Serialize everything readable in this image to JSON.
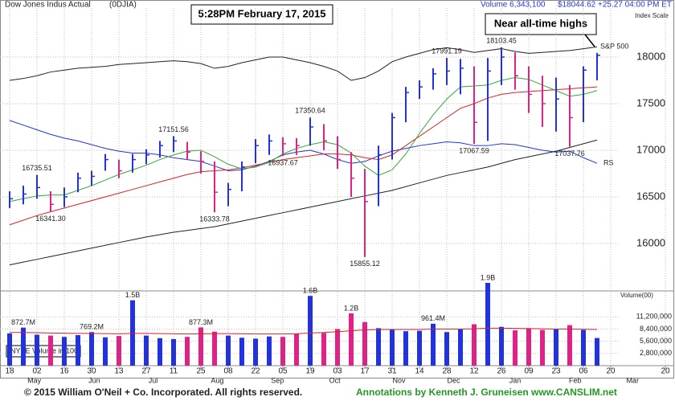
{
  "chart_data": {
    "type": "ohlc",
    "title": "Dow Jones Indus Actual",
    "symbol": "(0DJIA)",
    "volume_text": "Volume 6,343,100",
    "quote_text": "$18044.62 +25.27  04:00 PM ET",
    "scale_label": "Index Scale",
    "timestamp": "5:28PM February 17, 2015",
    "callout": "Near all-time highs",
    "x": [
      0,
      1,
      2,
      3,
      4,
      5,
      6,
      7,
      8,
      9,
      10,
      11,
      12,
      13,
      14,
      15,
      16,
      17,
      18,
      19,
      20,
      21,
      22,
      23,
      24,
      25,
      26,
      27,
      28,
      29,
      30,
      31,
      32,
      33,
      34,
      35,
      36,
      37,
      38,
      39,
      40,
      41,
      42,
      43
    ],
    "high": [
      16560,
      16620,
      16735.51,
      16560,
      16600,
      16760,
      16780,
      16960,
      16900,
      16960,
      17010,
      17100,
      17151.56,
      17090,
      16990,
      16880,
      16650,
      16880,
      17120,
      17170,
      17140,
      17130,
      17350.64,
      17280,
      17150,
      16980,
      16800,
      17050,
      17400,
      17680,
      17750,
      17880,
      17991.19,
      17980,
      17900,
      17990,
      18103.45,
      18050,
      17900,
      17800,
      17780,
      17700,
      17900,
      18044.62
    ],
    "low": [
      16380,
      16420,
      16480,
      16341.3,
      16390,
      16550,
      16620,
      16780,
      16700,
      16760,
      16850,
      16920,
      16980,
      16900,
      16750,
      16333.78,
      16400,
      16560,
      16860,
      16950,
      16937.67,
      16950,
      17050,
      17000,
      16800,
      16500,
      15855.12,
      16400,
      16900,
      17300,
      17550,
      17650,
      17700,
      17600,
      17067.59,
      17100,
      17700,
      17650,
      17400,
      17250,
      17200,
      17037.76,
      17300,
      17750
    ],
    "close": [
      16480,
      16530,
      16600,
      16420,
      16500,
      16700,
      16720,
      16900,
      16780,
      16900,
      16950,
      17050,
      17100,
      16980,
      16880,
      16550,
      16580,
      16820,
      17050,
      17100,
      17070,
      17050,
      17250,
      17100,
      16900,
      16700,
      16450,
      16950,
      17350,
      17620,
      17680,
      17820,
      17850,
      17880,
      17300,
      17850,
      18000,
      17800,
      17600,
      17500,
      17550,
      17350,
      17860,
      18019
    ],
    "up_color": "#2233dd",
    "down_color": "#dd2288",
    "xlim": [
      -0.6,
      48.6
    ],
    "xticks": [
      {
        "value": 0,
        "label": "18"
      },
      {
        "value": 2,
        "label": "02"
      },
      {
        "value": 4,
        "label": "16"
      },
      {
        "value": 6,
        "label": "30"
      },
      {
        "value": 8,
        "label": "13"
      },
      {
        "value": 10,
        "label": "27"
      },
      {
        "value": 12,
        "label": "11"
      },
      {
        "value": 14,
        "label": "25"
      },
      {
        "value": 16,
        "label": "08"
      },
      {
        "value": 18,
        "label": "22"
      },
      {
        "value": 20,
        "label": "05"
      },
      {
        "value": 22,
        "label": "19"
      },
      {
        "value": 24,
        "label": "03"
      },
      {
        "value": 26,
        "label": "17"
      },
      {
        "value": 28,
        "label": "31"
      },
      {
        "value": 30,
        "label": "14"
      },
      {
        "value": 32,
        "label": "28"
      },
      {
        "value": 34,
        "label": "12"
      },
      {
        "value": 36,
        "label": "26"
      },
      {
        "value": 38,
        "label": "09"
      },
      {
        "value": 40,
        "label": "23"
      },
      {
        "value": 42,
        "label": "06"
      },
      {
        "value": 44,
        "label": "20"
      },
      {
        "value": 48,
        "label": "20"
      }
    ],
    "months": [
      {
        "value": 1.8,
        "label": "May"
      },
      {
        "value": 6.2,
        "label": "Jun"
      },
      {
        "value": 10.5,
        "label": "Jul"
      },
      {
        "value": 15.2,
        "label": "Aug"
      },
      {
        "value": 19.6,
        "label": "Sep"
      },
      {
        "value": 23.8,
        "label": "Oct"
      },
      {
        "value": 28.5,
        "label": "Nov"
      },
      {
        "value": 32.5,
        "label": "Dec"
      },
      {
        "value": 37,
        "label": "Jan"
      },
      {
        "value": 41.4,
        "label": "Feb"
      },
      {
        "value": 45.6,
        "label": "Mar"
      }
    ],
    "ylim": [
      15491,
      18526
    ],
    "yticks": [
      16000,
      16500,
      17000,
      17500,
      18000
    ],
    "grid": true,
    "annotations": [
      {
        "label": "16735.51",
        "x": 2,
        "value": 16735.51,
        "position": "above"
      },
      {
        "label": "16341.30",
        "x": 3,
        "value": 16341.3,
        "position": "below"
      },
      {
        "label": "17151.56",
        "x": 12,
        "value": 17151.56,
        "position": "above"
      },
      {
        "label": "16333.78",
        "x": 15,
        "value": 16333.78,
        "position": "below"
      },
      {
        "label": "16937.67",
        "x": 20,
        "value": 16937.67,
        "position": "below"
      },
      {
        "label": "17350.64",
        "x": 22,
        "value": 17350.64,
        "position": "above"
      },
      {
        "label": "15855.12",
        "x": 26,
        "value": 15855.12,
        "position": "below"
      },
      {
        "label": "17991.19",
        "x": 32,
        "value": 17991.19,
        "position": "above"
      },
      {
        "label": "17067.59",
        "x": 34,
        "value": 17067.59,
        "position": "below"
      },
      {
        "label": "18103.45",
        "x": 36,
        "value": 18103.45,
        "position": "above"
      },
      {
        "label": "17037.76",
        "x": 41,
        "value": 17037.76,
        "position": "below"
      }
    ],
    "moving_averages": [
      {
        "color": "#222222",
        "values": [
          15770,
          15800,
          15830,
          15860,
          15890,
          15920,
          15950,
          15980,
          16010,
          16040,
          16070,
          16095,
          16120,
          16140,
          16160,
          16180,
          16210,
          16240,
          16270,
          16300,
          16330,
          16360,
          16390,
          16420,
          16450,
          16480,
          16510,
          16540,
          16570,
          16610,
          16650,
          16690,
          16730,
          16760,
          16790,
          16820,
          16860,
          16900,
          16930,
          16960,
          16990,
          17030,
          17070,
          17110
        ]
      },
      {
        "color": "#dd2222",
        "values": [
          16200,
          16250,
          16300,
          16340,
          16380,
          16420,
          16460,
          16500,
          16540,
          16580,
          16620,
          16660,
          16700,
          16740,
          16770,
          16780,
          16790,
          16810,
          16840,
          16870,
          16900,
          16920,
          16940,
          16960,
          16960,
          16950,
          16920,
          16900,
          16950,
          17050,
          17150,
          17250,
          17350,
          17450,
          17500,
          17560,
          17600,
          17620,
          17630,
          17640,
          17650,
          17660,
          17670,
          17680
        ]
      },
      {
        "color": "#33aa33",
        "values": [
          16450,
          16480,
          16510,
          16520,
          16520,
          16570,
          16620,
          16680,
          16740,
          16790,
          16840,
          16900,
          16950,
          16990,
          17000,
          16930,
          16850,
          16800,
          16820,
          16870,
          16960,
          17020,
          17060,
          17090,
          17060,
          16970,
          16830,
          16730,
          16790,
          16960,
          17180,
          17380,
          17550,
          17680,
          17690,
          17700,
          17750,
          17780,
          17760,
          17700,
          17640,
          17580,
          17600,
          17640
        ]
      }
    ],
    "sp500": {
      "label": "S&P 500",
      "color": "#222222",
      "values": [
        17750,
        17770,
        17800,
        17840,
        17860,
        17880,
        17890,
        17900,
        17920,
        17930,
        17940,
        17950,
        17960,
        17950,
        17930,
        17880,
        17900,
        17940,
        17970,
        18000,
        18000,
        17970,
        17940,
        17900,
        17850,
        17750,
        17780,
        17850,
        17950,
        18000,
        18040,
        18080,
        18100,
        18080,
        18050,
        18070,
        18090,
        18060,
        18040,
        18050,
        18060,
        18070,
        18090,
        18110
      ]
    },
    "rs_line": {
      "label": "RS",
      "color": "#2233dd",
      "values": [
        17320,
        17270,
        17220,
        17170,
        17130,
        17100,
        17060,
        17020,
        16990,
        16970,
        16970,
        16950,
        16920,
        16900,
        16880,
        16830,
        16780,
        16790,
        16830,
        16880,
        16950,
        16980,
        17000,
        16960,
        16900,
        16860,
        16880,
        16940,
        16990,
        17020,
        17050,
        17070,
        17090,
        17080,
        17050,
        17050,
        17070,
        17060,
        17030,
        17000,
        16980,
        16990,
        16920,
        16860
      ]
    },
    "volume_label": "Volume(00)",
    "volume_box": "NYSE Volume in 100",
    "volume": [
      7400000,
      8727000,
      7100000,
      6900000,
      6600000,
      7000000,
      7692000,
      6500000,
      6800000,
      15000000,
      6900000,
      6300000,
      6100000,
      6600000,
      8773000,
      7800000,
      6900000,
      6400000,
      6200000,
      6700000,
      6600000,
      7300000,
      16000000,
      7500000,
      8400000,
      12000000,
      10000000,
      8600000,
      8300000,
      7900000,
      8000000,
      9614000,
      7700000,
      8300000,
      9500000,
      19000000,
      8900000,
      8100000,
      8600000,
      8200000,
      8400000,
      9300000,
      8200000,
      6343100
    ],
    "volume_value_labels": [
      null,
      "872.7M",
      null,
      null,
      null,
      null,
      "769.2M",
      null,
      null,
      "1.5B",
      null,
      null,
      null,
      null,
      "877.3M",
      null,
      null,
      null,
      null,
      null,
      null,
      null,
      "1.6B",
      null,
      null,
      "1.2B",
      null,
      null,
      null,
      null,
      null,
      "961.4M",
      null,
      null,
      null,
      "1.9B",
      null,
      null,
      null,
      null,
      null,
      null,
      null,
      null
    ],
    "volume_ma": {
      "color": "#dd2222",
      "values": [
        7600000,
        7600000,
        7550000,
        7500000,
        7450000,
        7400000,
        7400000,
        7350000,
        7300000,
        7400000,
        7400000,
        7350000,
        7300000,
        7250000,
        7300000,
        7350000,
        7350000,
        7300000,
        7250000,
        7250000,
        7250000,
        7300000,
        7500000,
        7600000,
        7800000,
        8000000,
        8200000,
        8300000,
        8300000,
        8300000,
        8300000,
        8400000,
        8400000,
        8400000,
        8450000,
        8600000,
        8600000,
        8550000,
        8500000,
        8450000,
        8400000,
        8400000,
        8350000,
        8300000
      ]
    },
    "volume_ylim": [
      0,
      17150000
    ],
    "volume_yticks": [
      {
        "value": 2800000,
        "label": "2,800,000"
      },
      {
        "value": 5600000,
        "label": "5,600,000"
      },
      {
        "value": 8400000,
        "label": "8,400,000"
      },
      {
        "value": 11200000,
        "label": "11,200,000"
      }
    ]
  },
  "footer": {
    "copyright": "© 2015 William O'Neil + Co. Incorporated. All rights reserved.",
    "credit": "Annotations by Kenneth J. Gruneisen www.CANSLIM.net"
  }
}
